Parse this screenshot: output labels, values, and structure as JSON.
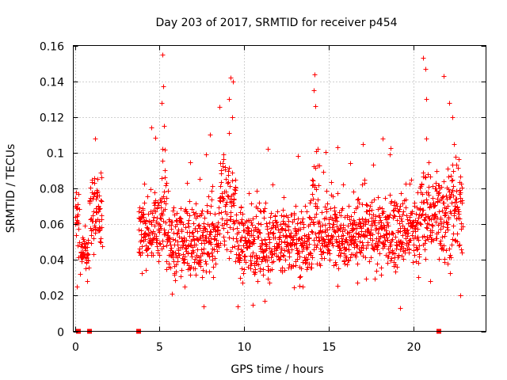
{
  "chart_data": {
    "type": "scatter",
    "title": "Day 203 of 2017, SRMTID for receiver p454",
    "xlabel": "GPS time / hours",
    "ylabel": "SRMTID / TECUs",
    "xlim": [
      -0.1,
      24.3
    ],
    "ylim": [
      0,
      0.16
    ],
    "x_ticks": [
      0,
      5,
      10,
      15,
      20
    ],
    "x_tick_labels": [
      "0",
      "5",
      "10",
      "15",
      "20"
    ],
    "y_ticks": [
      0,
      0.02,
      0.04,
      0.06,
      0.08,
      0.1,
      0.12,
      0.14,
      0.16
    ],
    "y_tick_labels": [
      "0",
      "0.02",
      "0.04",
      "0.06",
      "0.08",
      "0.1",
      "0.12",
      "0.14",
      "0.16"
    ],
    "grid": true,
    "legend": "none",
    "marker": "plus",
    "color": "#ff0000",
    "series": [
      {
        "name": "SRMTID",
        "segments": [
          {
            "x_start": 0.0,
            "x_end": 0.25,
            "mean": 0.064,
            "spread": 0.012
          },
          {
            "x_start": 0.3,
            "x_end": 0.8,
            "mean": 0.044,
            "spread": 0.008
          },
          {
            "x_start": 0.85,
            "x_end": 1.6,
            "mean": 0.066,
            "spread": 0.014
          },
          {
            "x_start": 3.75,
            "x_end": 5.0,
            "mean": 0.056,
            "spread": 0.014
          },
          {
            "x_start": 5.0,
            "x_end": 5.4,
            "mean": 0.07,
            "spread": 0.022
          },
          {
            "x_start": 5.4,
            "x_end": 8.5,
            "mean": 0.05,
            "spread": 0.014
          },
          {
            "x_start": 8.5,
            "x_end": 9.5,
            "mean": 0.07,
            "spread": 0.022
          },
          {
            "x_start": 9.5,
            "x_end": 14.0,
            "mean": 0.05,
            "spread": 0.014
          },
          {
            "x_start": 14.0,
            "x_end": 14.4,
            "mean": 0.064,
            "spread": 0.02
          },
          {
            "x_start": 14.4,
            "x_end": 20.4,
            "mean": 0.055,
            "spread": 0.014
          },
          {
            "x_start": 20.4,
            "x_end": 22.9,
            "mean": 0.066,
            "spread": 0.018
          }
        ],
        "peaks": [
          {
            "x": 5.15,
            "y": 0.155
          },
          {
            "x": 5.2,
            "y": 0.137
          },
          {
            "x": 5.1,
            "y": 0.128
          },
          {
            "x": 5.25,
            "y": 0.115
          },
          {
            "x": 9.2,
            "y": 0.142
          },
          {
            "x": 9.35,
            "y": 0.14
          },
          {
            "x": 9.1,
            "y": 0.13
          },
          {
            "x": 9.3,
            "y": 0.12
          },
          {
            "x": 14.15,
            "y": 0.144
          },
          {
            "x": 14.1,
            "y": 0.135
          },
          {
            "x": 14.2,
            "y": 0.126
          },
          {
            "x": 20.6,
            "y": 0.153
          },
          {
            "x": 20.7,
            "y": 0.147
          },
          {
            "x": 20.75,
            "y": 0.13
          },
          {
            "x": 21.8,
            "y": 0.143
          },
          {
            "x": 22.1,
            "y": 0.128
          },
          {
            "x": 22.3,
            "y": 0.12
          },
          {
            "x": 1.2,
            "y": 0.108
          },
          {
            "x": 8.0,
            "y": 0.11
          },
          {
            "x": 4.5,
            "y": 0.114
          },
          {
            "x": 11.4,
            "y": 0.102
          },
          {
            "x": 13.2,
            "y": 0.098
          },
          {
            "x": 15.5,
            "y": 0.103
          },
          {
            "x": 17.0,
            "y": 0.105
          },
          {
            "x": 18.2,
            "y": 0.108
          },
          {
            "x": 18.6,
            "y": 0.099
          },
          {
            "x": 9.6,
            "y": 0.014
          },
          {
            "x": 10.5,
            "y": 0.015
          },
          {
            "x": 11.2,
            "y": 0.017
          },
          {
            "x": 19.2,
            "y": 0.013
          },
          {
            "x": 7.6,
            "y": 0.014
          },
          {
            "x": 21.0,
            "y": 0.028
          },
          {
            "x": 0.1,
            "y": 0.025
          },
          {
            "x": 22.8,
            "y": 0.02
          }
        ]
      }
    ],
    "zero_markers_x": [
      0.22,
      0.85,
      3.75,
      21.5
    ]
  }
}
